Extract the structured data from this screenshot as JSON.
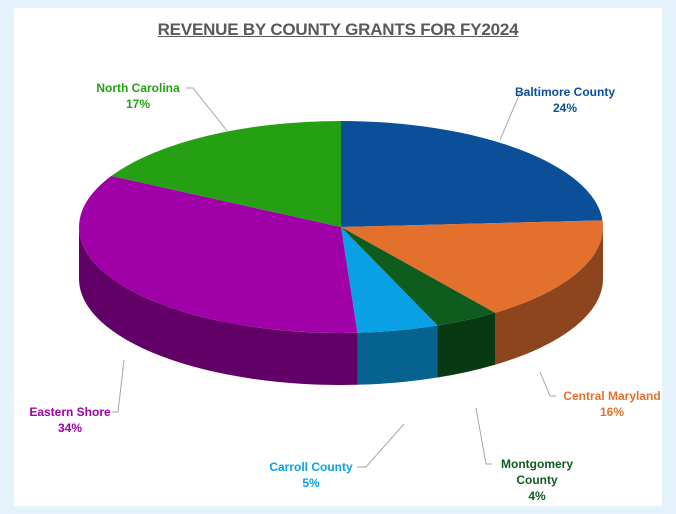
{
  "chart_data": {
    "type": "pie3d",
    "title": "REVENUE BY COUNTY GRANTS FOR FY2024",
    "categories": [
      "Baltimore County",
      "Central Maryland",
      "Montgomery County",
      "Carroll County",
      "Eastern Shore",
      "North Carolina"
    ],
    "values": [
      24,
      16,
      4,
      5,
      34,
      17
    ],
    "value_labels": [
      "24%",
      "16%",
      "4%",
      "5%",
      "34%",
      "17%"
    ],
    "colors": [
      "#0b4f98",
      "#e4702e",
      "#0f5c1f",
      "#0aa0e6",
      "#a000a8",
      "#24a012"
    ]
  }
}
